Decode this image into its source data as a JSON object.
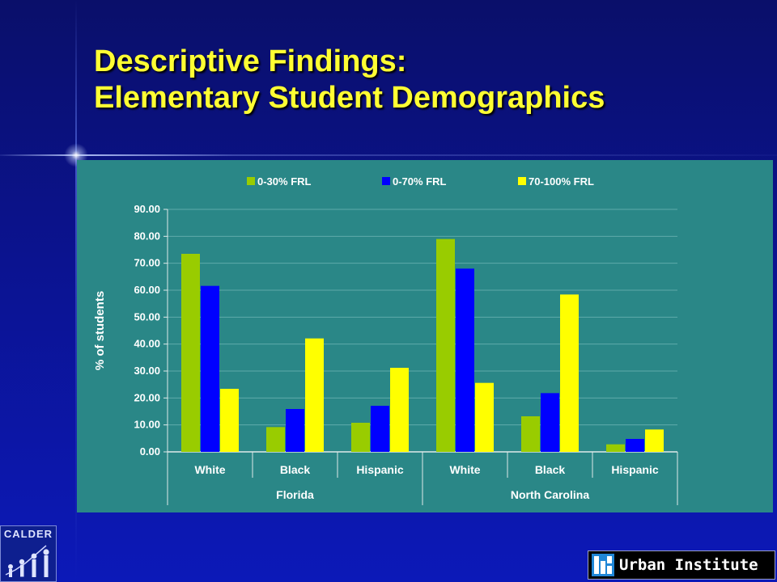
{
  "slide": {
    "title_line1": "Descriptive Findings:",
    "title_line2": "Elementary Student Demographics"
  },
  "logos": {
    "calder_text": "CALDER",
    "urban_text": "Urban Institute"
  },
  "colors": {
    "chart_background": "#2a8787",
    "title": "#ffff33"
  },
  "chart_data": {
    "type": "bar",
    "ylabel": "% of students",
    "ylim": [
      0,
      90
    ],
    "yticks": [
      "0.00",
      "10.00",
      "20.00",
      "30.00",
      "40.00",
      "50.00",
      "60.00",
      "70.00",
      "80.00",
      "90.00"
    ],
    "categories": [
      "White",
      "Black",
      "Hispanic",
      "White",
      "Black",
      "Hispanic"
    ],
    "groups": [
      {
        "name": "Florida",
        "start": 0,
        "count": 3
      },
      {
        "name": "North Carolina",
        "start": 3,
        "count": 3
      }
    ],
    "legend_position": "top",
    "grid": true,
    "series": [
      {
        "name": "0-30% FRL",
        "color": "#99cc00",
        "values": [
          73.5,
          9.2,
          10.8,
          79.0,
          13.2,
          2.8
        ]
      },
      {
        "name": "0-70% FRL",
        "color": "#0000ff",
        "values": [
          61.6,
          15.9,
          17.1,
          68.0,
          21.8,
          4.8
        ]
      },
      {
        "name": "70-100% FRL",
        "color": "#ffff00",
        "values": [
          23.4,
          42.1,
          31.2,
          25.6,
          58.4,
          8.3
        ]
      }
    ]
  }
}
